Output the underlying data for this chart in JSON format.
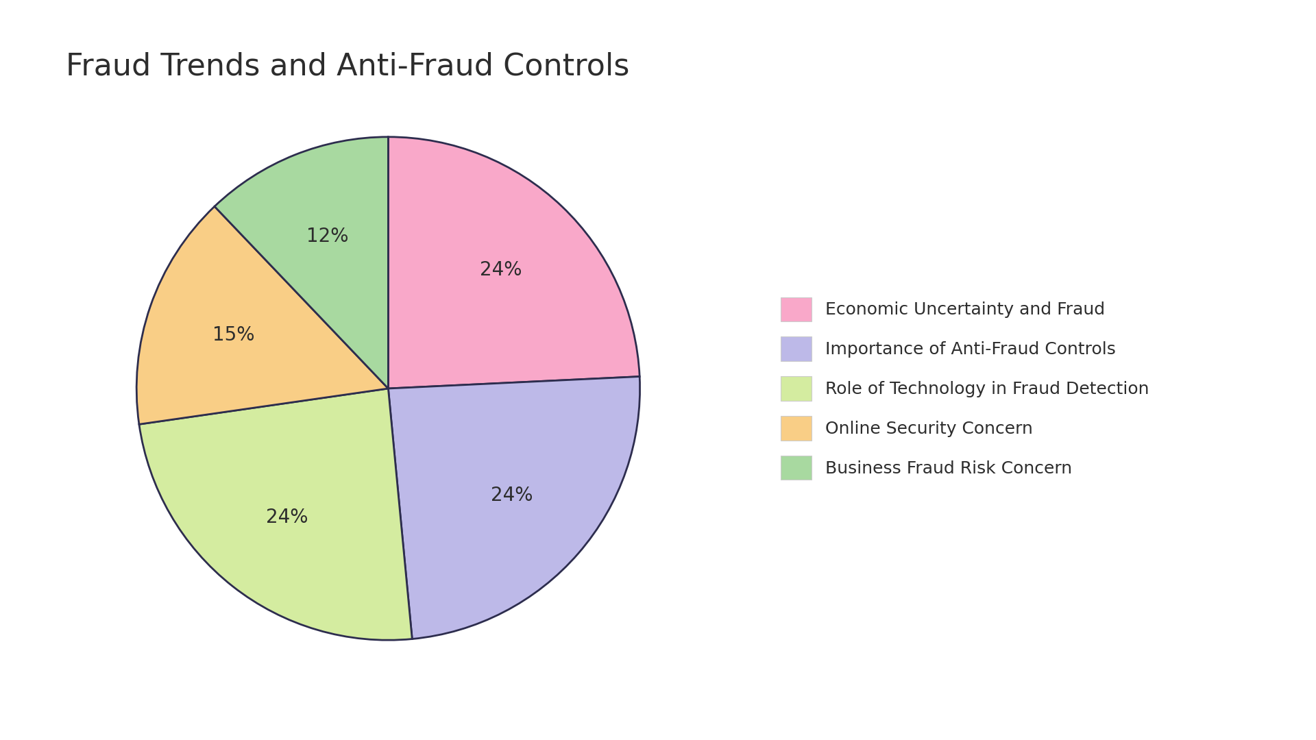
{
  "title": "Fraud Trends and Anti-Fraud Controls",
  "labels": [
    "Economic Uncertainty and Fraud",
    "Importance of Anti-Fraud Controls",
    "Role of Technology in Fraud Detection",
    "Online Security Concern",
    "Business Fraud Risk Concern"
  ],
  "values": [
    24,
    24,
    24,
    15,
    12
  ],
  "colors": [
    "#F9A8C9",
    "#BDB9E8",
    "#D4ECA0",
    "#F9CE86",
    "#A8D9A0"
  ],
  "edge_color": "#2d2d4e",
  "edge_width": 2.0,
  "startangle": 90,
  "pct_fontsize": 20,
  "title_fontsize": 32,
  "legend_fontsize": 18,
  "background_color": "#ffffff",
  "text_color": "#2d2d2d"
}
